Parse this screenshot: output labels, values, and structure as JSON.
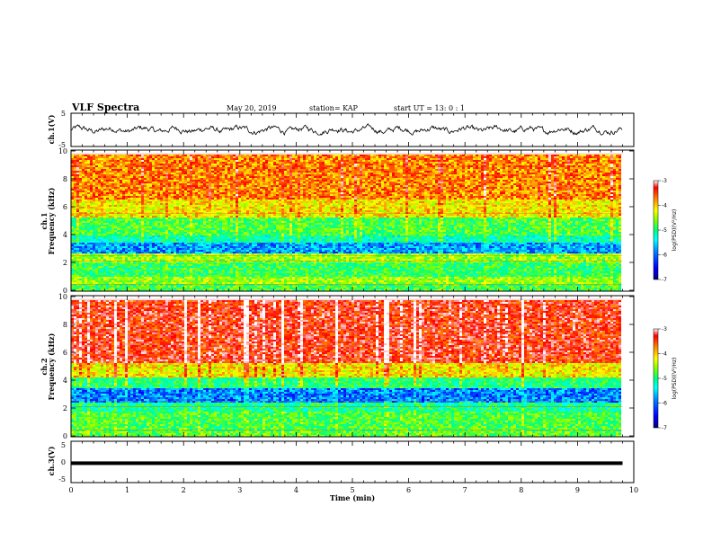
{
  "header": {
    "title": "VLF Spectra",
    "date": "May 20, 2019",
    "station": "station= KAP",
    "start": "start UT =  13: 0 : 1"
  },
  "chart_data": [
    {
      "type": "line",
      "panel": "ch1-waveform",
      "ylabel": "ch.1(V)",
      "ylim": [
        -5,
        5
      ],
      "yticks": [
        "5",
        "-5"
      ],
      "x_range_min": [
        0,
        9.8
      ],
      "approx_mean_V": 0,
      "approx_range_V": [
        -1.5,
        1.8
      ],
      "color": "#000000"
    },
    {
      "type": "heatmap",
      "panel": "ch1-spectrogram",
      "ylabel": "ch.1 Frequency (kHz)",
      "ylim": [
        0,
        10
      ],
      "yticks": [
        "0",
        "2",
        "4",
        "6",
        "8",
        "10"
      ],
      "x_range_min": [
        0,
        9.8
      ],
      "colorbar": {
        "label": "log(PSD)(V²/Hz)",
        "range": [
          -7,
          -3
        ],
        "ticks": [
          "-3",
          "-4",
          "-5",
          "-6",
          "-7"
        ]
      },
      "bands_kHz": [
        {
          "f0": 0,
          "f1": 0.4,
          "log_psd": -5.0
        },
        {
          "f0": 0.4,
          "f1": 1.0,
          "log_psd": -4.7
        },
        {
          "f0": 1.0,
          "f1": 2.0,
          "log_psd": -5.1
        },
        {
          "f0": 2.0,
          "f1": 2.6,
          "log_psd": -4.7
        },
        {
          "f0": 2.6,
          "f1": 3.4,
          "log_psd": -6.0
        },
        {
          "f0": 3.4,
          "f1": 4.0,
          "log_psd": -5.4
        },
        {
          "f0": 4.0,
          "f1": 5.2,
          "log_psd": -5.0
        },
        {
          "f0": 5.2,
          "f1": 6.5,
          "log_psd": -4.3
        },
        {
          "f0": 6.5,
          "f1": 9.8,
          "log_psd": -3.9
        }
      ],
      "burst_intensity": 0.5
    },
    {
      "type": "heatmap",
      "panel": "ch2-spectrogram",
      "ylabel": "ch.2 Frequency (kHz)",
      "ylim": [
        0,
        10
      ],
      "yticks": [
        "0",
        "2",
        "4",
        "6",
        "8",
        "10"
      ],
      "x_range_min": [
        0,
        9.8
      ],
      "colorbar": {
        "label": "log(PSD)(V²/Hz)",
        "range": [
          -7,
          -3
        ],
        "ticks": [
          "-3",
          "-4",
          "-5",
          "-6",
          "-7"
        ]
      },
      "bands_kHz": [
        {
          "f0": 0,
          "f1": 0.3,
          "log_psd": -4.9
        },
        {
          "f0": 0.3,
          "f1": 1.8,
          "log_psd": -5.0
        },
        {
          "f0": 1.8,
          "f1": 2.4,
          "log_psd": -5.3
        },
        {
          "f0": 2.4,
          "f1": 3.4,
          "log_psd": -6.1
        },
        {
          "f0": 3.4,
          "f1": 4.2,
          "log_psd": -5.2
        },
        {
          "f0": 4.2,
          "f1": 5.2,
          "log_psd": -4.3
        },
        {
          "f0": 5.2,
          "f1": 9.8,
          "log_psd": -3.5
        }
      ],
      "burst_intensity": 0.7
    },
    {
      "type": "line",
      "panel": "ch3-waveform",
      "ylabel": "ch.3(V)",
      "ylim": [
        -5,
        5
      ],
      "yticks": [
        "5",
        "0",
        "-5"
      ],
      "x_range_min": [
        0,
        9.8
      ],
      "approx_mean_V": -0.3,
      "color": "#000000"
    }
  ],
  "xaxis": {
    "label": "Time  (min)",
    "range": [
      0,
      10
    ],
    "ticks": [
      "0",
      "1",
      "2",
      "3",
      "4",
      "5",
      "6",
      "7",
      "8",
      "9",
      "10"
    ]
  },
  "colormap": [
    "#000090",
    "#0000ff",
    "#0080ff",
    "#00ffff",
    "#00ff80",
    "#80ff00",
    "#ffff00",
    "#ff8000",
    "#ff0000",
    "#ffffff"
  ]
}
